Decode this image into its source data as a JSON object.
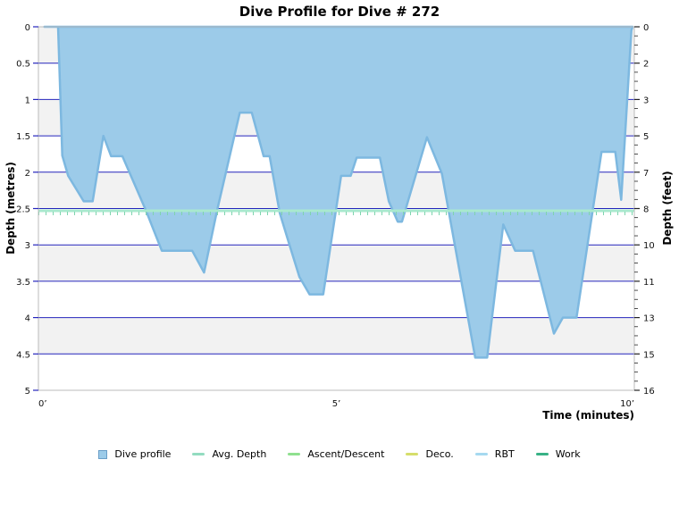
{
  "title": "Dive Profile for Dive # 272",
  "chart_data": {
    "type": "area",
    "title": "Dive Profile for Dive # 272",
    "x_axis": {
      "label": "Time (minutes)",
      "range_minutes": [
        0,
        10
      ],
      "ticks": [
        {
          "value": 0,
          "label": "0’"
        },
        {
          "value": 5,
          "label": "5’"
        },
        {
          "value": 10,
          "label": "10’"
        }
      ]
    },
    "y_axis_left": {
      "label": "Depth (metres)",
      "range": [
        0,
        5
      ],
      "tick_step": 0.5,
      "tick_labels": [
        "0",
        "0.5",
        "1",
        "1.5",
        "2",
        "2.5",
        "3",
        "3.5",
        "4",
        "4.5",
        "5"
      ]
    },
    "y_axis_right": {
      "label": "Depth (feet)",
      "tick_labels": [
        "0",
        "2",
        "3",
        "5",
        "7",
        "8",
        "10",
        "11",
        "13",
        "15",
        "16"
      ]
    },
    "grid": {
      "horizontal_lines_every_m": 0.5,
      "alternating_bands": true
    },
    "avg_depth_m": 2.53,
    "series": [
      {
        "name": "Dive profile",
        "points_time_min_depth_m": [
          [
            0.1,
            0.0
          ],
          [
            0.33,
            0.0
          ],
          [
            0.4,
            1.77
          ],
          [
            0.5,
            2.05
          ],
          [
            0.76,
            2.4
          ],
          [
            0.91,
            2.4
          ],
          [
            1.09,
            1.5
          ],
          [
            1.22,
            1.78
          ],
          [
            1.41,
            1.78
          ],
          [
            1.8,
            2.52
          ],
          [
            2.07,
            3.08
          ],
          [
            2.58,
            3.08
          ],
          [
            2.78,
            3.38
          ],
          [
            3.0,
            2.52
          ],
          [
            3.38,
            1.18
          ],
          [
            3.58,
            1.18
          ],
          [
            3.78,
            1.78
          ],
          [
            3.88,
            1.78
          ],
          [
            4.05,
            2.56
          ],
          [
            4.22,
            3.02
          ],
          [
            4.38,
            3.44
          ],
          [
            4.55,
            3.68
          ],
          [
            4.78,
            3.68
          ],
          [
            5.08,
            2.05
          ],
          [
            5.24,
            2.05
          ],
          [
            5.34,
            1.8
          ],
          [
            5.73,
            1.8
          ],
          [
            5.88,
            2.4
          ],
          [
            6.03,
            2.68
          ],
          [
            6.1,
            2.68
          ],
          [
            6.52,
            1.52
          ],
          [
            6.77,
            2.02
          ],
          [
            7.33,
            4.55
          ],
          [
            7.53,
            4.55
          ],
          [
            7.8,
            2.72
          ],
          [
            8.0,
            3.08
          ],
          [
            8.3,
            3.08
          ],
          [
            8.65,
            4.22
          ],
          [
            8.8,
            4.0
          ],
          [
            9.03,
            4.0
          ],
          [
            9.45,
            1.72
          ],
          [
            9.68,
            1.72
          ],
          [
            9.78,
            2.38
          ],
          [
            9.95,
            0.05
          ],
          [
            9.97,
            0.0
          ]
        ]
      }
    ]
  },
  "legend": {
    "items": [
      {
        "label": "Dive profile",
        "swatch": "square",
        "color": "#9CCBE9",
        "border": "#6A9EC8"
      },
      {
        "label": "Avg. Depth",
        "swatch": "line",
        "color": "#93DCC0"
      },
      {
        "label": "Ascent/Descent",
        "swatch": "line",
        "color": "#8FE08F"
      },
      {
        "label": "Deco.",
        "swatch": "line",
        "color": "#D6DE6B"
      },
      {
        "label": "RBT",
        "swatch": "line",
        "color": "#A6D9F0"
      },
      {
        "label": "Work",
        "swatch": "line",
        "color": "#38B286"
      }
    ]
  },
  "colors": {
    "profile_fill": "#9CCBE9",
    "profile_stroke": "#7DB8E0",
    "gridline": "#2424BC",
    "band_gray": "#F2F2F2",
    "band_white": "#FFFFFF",
    "frame": "#BBBBBB",
    "avg_line": "#A9E9CE",
    "avg_line_ticks": "#7FD4AE",
    "tick_black": "#222222"
  }
}
